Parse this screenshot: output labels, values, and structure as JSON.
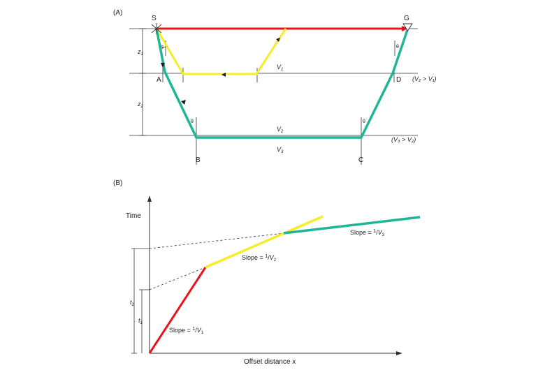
{
  "colors": {
    "red": "#e8141c",
    "yellow": "#f4ee2a",
    "teal": "#1fb597",
    "ink": "#1a1a1a"
  },
  "panel_a": {
    "title": "(A)",
    "points": {
      "S": "S",
      "G": "G",
      "A": "A",
      "B": "B",
      "C": "C",
      "D": "D"
    },
    "depths": {
      "z1": "z",
      "z1_sub": "1",
      "z2": "z",
      "z2_sub": "2"
    },
    "layers": {
      "v1": "V",
      "v1_sub": "1",
      "v2": "V",
      "v2_sub": "2",
      "v3": "V",
      "v3_sub": "3"
    },
    "conditions": {
      "second": "(V₂ > V₁)",
      "third": "(V₃ > V₂)"
    },
    "angles": {
      "theta": "θ"
    }
  },
  "panel_b": {
    "title": "(B)",
    "y_axis_label": "Time",
    "x_axis_label": "Offset distance x",
    "slopes": [
      {
        "prefix": "Slope = ",
        "num": "1",
        "den": "V",
        "sub": "1"
      },
      {
        "prefix": "Slope = ",
        "num": "1",
        "den": "V",
        "sub": "2"
      },
      {
        "prefix": "Slope = ",
        "num": "1",
        "den": "V",
        "sub": "3"
      }
    ],
    "intercepts": {
      "t2": "t",
      "t2_sub": "2",
      "t1": "t",
      "t1_sub": "1"
    }
  }
}
